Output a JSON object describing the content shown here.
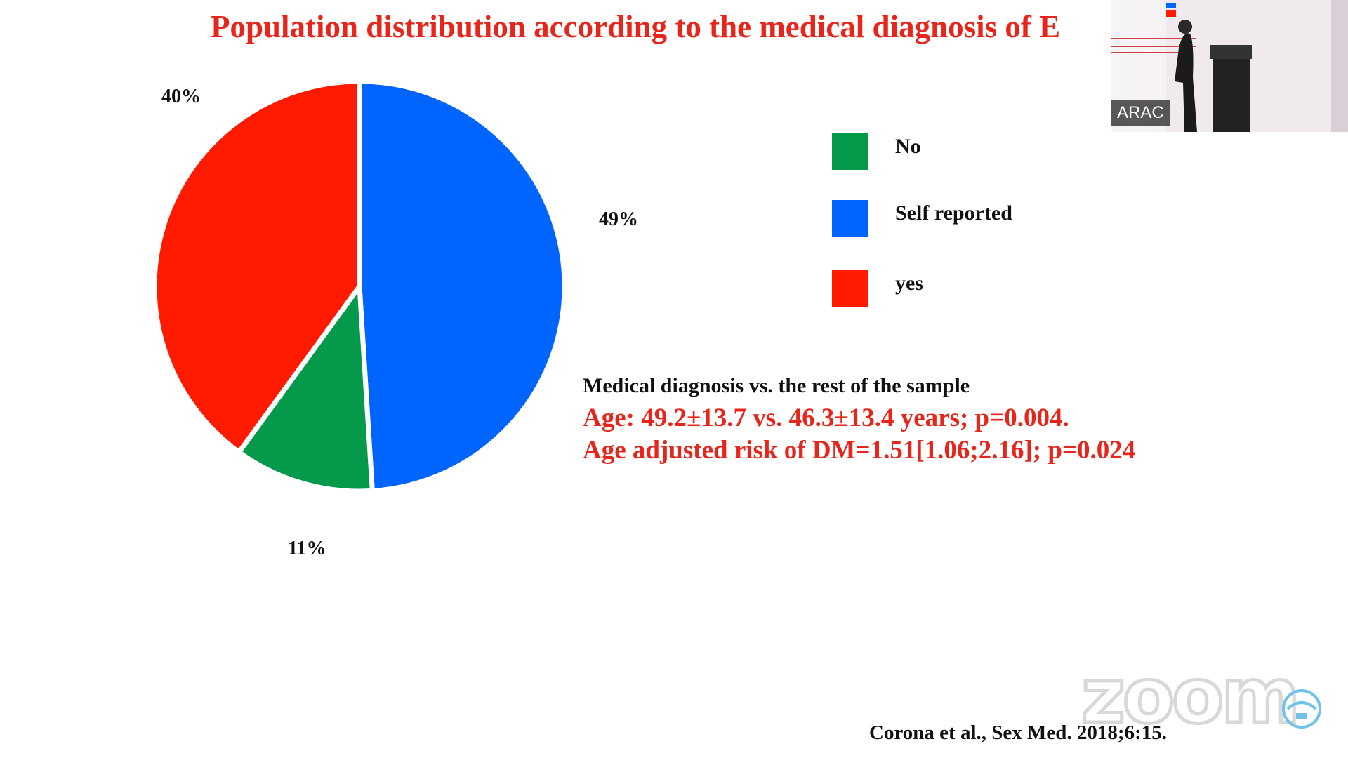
{
  "slide": {
    "title": "Population distribution according to the medical diagnosis of E"
  },
  "chart_data": {
    "type": "pie",
    "title": "",
    "slices": [
      {
        "label": "No",
        "value": 11,
        "display": "11%",
        "color": "#05994b"
      },
      {
        "label": "Self reported",
        "value": 49,
        "display": "49%",
        "color": "#0064ff"
      },
      {
        "label": "yes",
        "value": 40,
        "display": "40%",
        "color": "#ff1a00"
      }
    ],
    "legend_position": "right"
  },
  "legend": {
    "items": [
      {
        "label": "No",
        "color": "#05994b"
      },
      {
        "label": "Self reported",
        "color": "#0064ff"
      },
      {
        "label": "yes",
        "color": "#ff1a00"
      }
    ]
  },
  "note": {
    "heading": "Medical diagnosis vs. the rest of the sample",
    "line1": "Age: 49.2±13.7 vs. 46.3±13.4 years; p=0.004.",
    "line2": "Age adjusted risk of DM=1.51[1.06;2.16]; p=0.024"
  },
  "citation": "Corona et al., Sex Med. 2018;6:15.",
  "video": {
    "participant_label": "ARAC"
  },
  "watermark": {
    "text": "zoom"
  }
}
